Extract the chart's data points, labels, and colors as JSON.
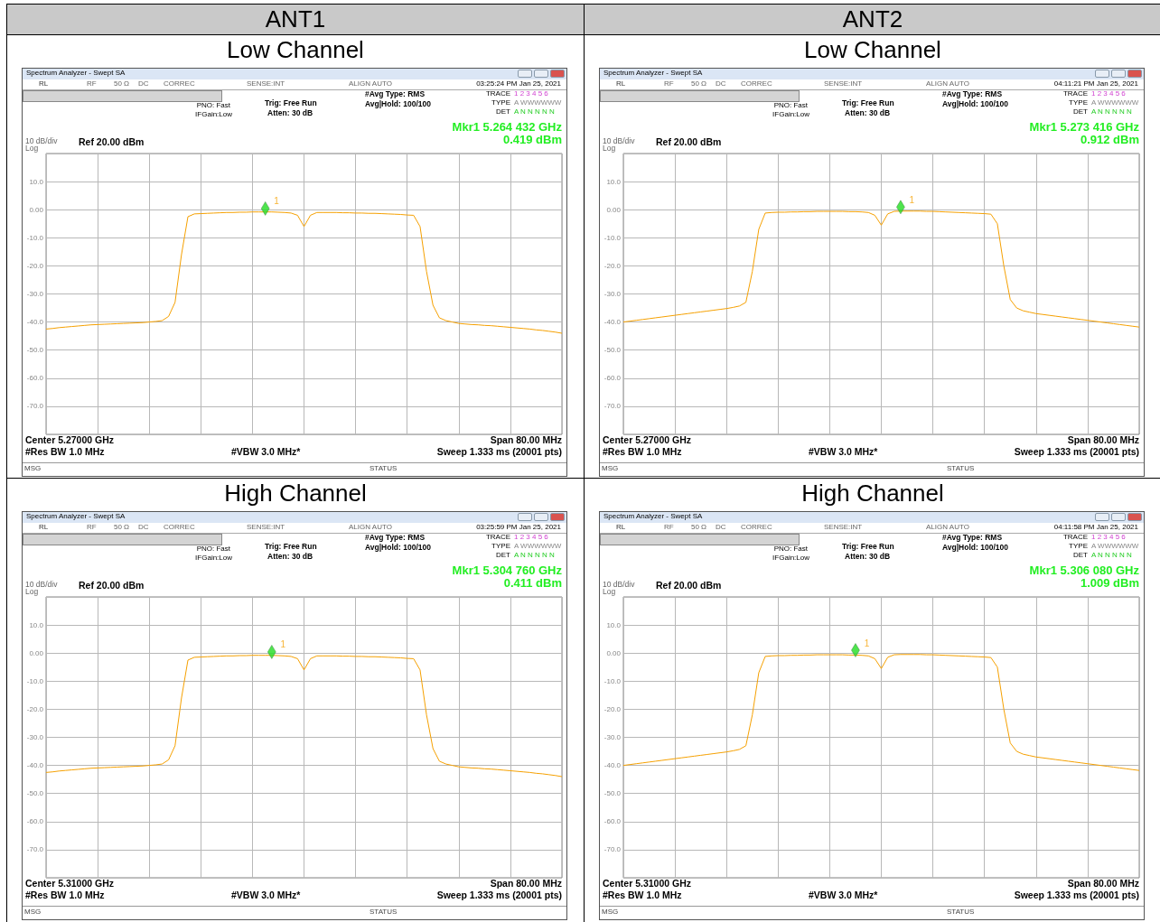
{
  "chart_data": [
    {
      "type": "line",
      "title": "ANT1",
      "subtitle": "Low Channel",
      "categories": [
        null,
        null,
        null,
        null,
        null,
        null,
        null,
        null,
        null,
        null,
        null,
        null,
        null,
        null,
        null,
        null,
        null,
        null,
        null,
        null,
        null,
        null,
        null,
        null,
        null,
        null,
        null,
        null,
        null,
        null,
        null,
        null,
        null,
        null,
        null,
        null,
        null,
        null,
        null,
        null,
        null,
        null,
        null,
        null,
        null,
        null,
        null,
        null,
        null,
        null,
        null,
        null,
        null,
        null,
        null,
        null,
        null,
        null,
        null,
        null,
        null,
        null,
        null,
        null,
        null,
        null,
        null,
        null,
        null,
        null,
        null,
        null,
        null,
        null,
        null,
        null,
        null,
        null,
        null,
        null,
        null
      ],
      "ylim": [
        -80,
        20
      ],
      "yticks": [
        {
          "value": 20,
          "label": null
        },
        {
          "value": 10,
          "label": "10.0"
        },
        {
          "value": 0,
          "label": "0.00"
        },
        {
          "value": -10,
          "label": "-10.0"
        },
        {
          "value": -20,
          "label": "-20.0"
        },
        {
          "value": -30,
          "label": "-30.0"
        },
        {
          "value": -40,
          "label": "-40.0"
        },
        {
          "value": -50,
          "label": "-50.0"
        },
        {
          "value": -60,
          "label": "-60.0"
        },
        {
          "value": -70,
          "label": "-70.0"
        },
        {
          "value": -80,
          "label": null
        }
      ],
      "grid": true,
      "tick_labels": "y",
      "series": [
        {
          "marker": "none",
          "color": "#f5a000",
          "values": [
            -42.5,
            -42.3,
            -42,
            -41.8,
            -41.6,
            -41.4,
            -41.2,
            -41,
            -40.9,
            -40.8,
            -40.7,
            -40.6,
            -40.5,
            -40.4,
            -40.3,
            -40.2,
            -40,
            -39.8,
            -39.5,
            -38,
            -33,
            -16,
            -2.5,
            -1.5,
            -1.4,
            -1.3,
            -1.2,
            -1.1,
            -1,
            -1,
            -0.9,
            -0.9,
            -0.8,
            -0.8,
            -0.8,
            -0.8,
            -0.9,
            -1,
            -1.2,
            -2,
            -6,
            -2,
            -1,
            -1,
            -1,
            -1,
            -1.1,
            -1.1,
            -1.2,
            -1.2,
            -1.3,
            -1.3,
            -1.4,
            -1.5,
            -1.6,
            -1.7,
            -1.9,
            -2,
            -6,
            -22,
            -34,
            -38.5,
            -39.5,
            -40,
            -40.5,
            -40.7,
            -40.9,
            -41,
            -41.2,
            -41.3,
            -41.5,
            -41.7,
            -41.9,
            -42.1,
            -42.3,
            -42.5,
            -42.8,
            -43,
            -43.3,
            -43.6,
            -44
          ]
        },
        {
          "type": "scatter",
          "name": "1",
          "marker": "diamond",
          "color": "#22dd22",
          "values": [
            null,
            null,
            null,
            null,
            null,
            null,
            null,
            null,
            null,
            null,
            null,
            null,
            null,
            null,
            null,
            null,
            null,
            null,
            null,
            null,
            null,
            null,
            null,
            null,
            null,
            null,
            null,
            null,
            null,
            null,
            null,
            null,
            null,
            null,
            0.419,
            null,
            null,
            null,
            null,
            null,
            null,
            null,
            null,
            null,
            null,
            null,
            null,
            null,
            null,
            null,
            null,
            null,
            null,
            null,
            null,
            null,
            null,
            null,
            null,
            null,
            null,
            null,
            null,
            null,
            null,
            null,
            null,
            null,
            null,
            null,
            null,
            null,
            null,
            null,
            null,
            null,
            null,
            null,
            null,
            null,
            null
          ]
        }
      ],
      "annotations": [
        "Spectrum Analyzer - Swept SA",
        "RL",
        "RF",
        "50 Ω",
        "DC",
        "CORREC",
        "SENSE:INT",
        "ALIGN AUTO",
        "03:25:24 PM Jan 25, 2021",
        "PNO: Fast",
        "IFGain:Low",
        "Trig: Free Run",
        "Atten: 30 dB",
        "#Avg Type: RMS",
        "Avg|Hold: 100/100",
        "TRACE",
        "1 2 3 4 5 6",
        "TYPE",
        "A WWWWWW",
        "DET",
        "A N N N N N",
        "Mkr1 5.264 432 GHz",
        "0.419 dBm",
        "10 dB/div",
        "Log",
        "Ref 20.00 dBm",
        "Center 5.27000 GHz",
        "Span 80.00 MHz",
        "#Res BW 1.0 MHz",
        "#VBW 3.0 MHz*",
        "Sweep  1.333 ms (20001 pts)",
        "MSG",
        "STATUS"
      ]
    },
    {
      "type": "line",
      "title": "ANT2",
      "subtitle": "Low Channel",
      "categories": [
        null,
        null,
        null,
        null,
        null,
        null,
        null,
        null,
        null,
        null,
        null,
        null,
        null,
        null,
        null,
        null,
        null,
        null,
        null,
        null,
        null,
        null,
        null,
        null,
        null,
        null,
        null,
        null,
        null,
        null,
        null,
        null,
        null,
        null,
        null,
        null,
        null,
        null,
        null,
        null,
        null,
        null,
        null,
        null,
        null,
        null,
        null,
        null,
        null,
        null,
        null,
        null,
        null,
        null,
        null,
        null,
        null,
        null,
        null,
        null,
        null,
        null,
        null,
        null,
        null,
        null,
        null,
        null,
        null,
        null,
        null,
        null,
        null,
        null,
        null,
        null,
        null,
        null,
        null,
        null,
        null
      ],
      "ylim": [
        -80,
        20
      ],
      "yticks": [
        {
          "value": 20,
          "label": null
        },
        {
          "value": 10,
          "label": "10.0"
        },
        {
          "value": 0,
          "label": "0.00"
        },
        {
          "value": -10,
          "label": "-10.0"
        },
        {
          "value": -20,
          "label": "-20.0"
        },
        {
          "value": -30,
          "label": "-30.0"
        },
        {
          "value": -40,
          "label": "-40.0"
        },
        {
          "value": -50,
          "label": "-50.0"
        },
        {
          "value": -60,
          "label": "-60.0"
        },
        {
          "value": -70,
          "label": "-70.0"
        },
        {
          "value": -80,
          "label": null
        }
      ],
      "grid": true,
      "tick_labels": "y",
      "series": [
        {
          "marker": "none",
          "color": "#f5a000",
          "values": [
            -40,
            -39.7,
            -39.4,
            -39.1,
            -38.8,
            -38.5,
            -38.2,
            -37.9,
            -37.6,
            -37.3,
            -37,
            -36.7,
            -36.4,
            -36.1,
            -35.8,
            -35.5,
            -35.2,
            -34.8,
            -34.3,
            -33,
            -22,
            -7,
            -1.2,
            -1,
            -0.9,
            -0.9,
            -0.8,
            -0.8,
            -0.7,
            -0.7,
            -0.6,
            -0.6,
            -0.6,
            -0.6,
            -0.6,
            -0.7,
            -0.7,
            -0.8,
            -1,
            -2,
            -5.5,
            -1.5,
            -0.6,
            -0.5,
            -0.5,
            -0.5,
            -0.5,
            -0.6,
            -0.6,
            -0.7,
            -0.8,
            -0.9,
            -1,
            -1.1,
            -1.2,
            -1.3,
            -1.4,
            -1.6,
            -5,
            -20,
            -32,
            -35,
            -36,
            -36.5,
            -37,
            -37.3,
            -37.6,
            -37.9,
            -38.2,
            -38.5,
            -38.8,
            -39.1,
            -39.4,
            -39.7,
            -40,
            -40.3,
            -40.6,
            -40.9,
            -41.2,
            -41.5,
            -41.8
          ]
        },
        {
          "type": "scatter",
          "name": "1",
          "marker": "diamond",
          "color": "#22dd22",
          "values": [
            null,
            null,
            null,
            null,
            null,
            null,
            null,
            null,
            null,
            null,
            null,
            null,
            null,
            null,
            null,
            null,
            null,
            null,
            null,
            null,
            null,
            null,
            null,
            null,
            null,
            null,
            null,
            null,
            null,
            null,
            null,
            null,
            null,
            null,
            null,
            null,
            null,
            null,
            null,
            null,
            null,
            null,
            null,
            0.912,
            null,
            null,
            null,
            null,
            null,
            null,
            null,
            null,
            null,
            null,
            null,
            null,
            null,
            null,
            null,
            null,
            null,
            null,
            null,
            null,
            null,
            null,
            null,
            null,
            null,
            null,
            null,
            null,
            null,
            null,
            null,
            null,
            null,
            null,
            null,
            null,
            null
          ]
        }
      ],
      "annotations": [
        "Spectrum Analyzer - Swept SA",
        "RL",
        "RF",
        "50 Ω",
        "DC",
        "CORREC",
        "SENSE:INT",
        "ALIGN AUTO",
        "04:11:21 PM Jan 25, 2021",
        "PNO: Fast",
        "IFGain:Low",
        "Trig: Free Run",
        "Atten: 30 dB",
        "#Avg Type: RMS",
        "Avg|Hold: 100/100",
        "TRACE",
        "1 2 3 4 5 6",
        "TYPE",
        "A WWWWWW",
        "DET",
        "A N N N N N",
        "Mkr1 5.273 416 GHz",
        "0.912 dBm",
        "10 dB/div",
        "Log",
        "Ref 20.00 dBm",
        "Center 5.27000 GHz",
        "Span 80.00 MHz",
        "#Res BW 1.0 MHz",
        "#VBW 3.0 MHz*",
        "Sweep  1.333 ms (20001 pts)",
        "MSG",
        "STATUS"
      ]
    },
    {
      "type": "line",
      "subtitle": "High Channel",
      "categories": [
        null,
        null,
        null,
        null,
        null,
        null,
        null,
        null,
        null,
        null,
        null,
        null,
        null,
        null,
        null,
        null,
        null,
        null,
        null,
        null,
        null,
        null,
        null,
        null,
        null,
        null,
        null,
        null,
        null,
        null,
        null,
        null,
        null,
        null,
        null,
        null,
        null,
        null,
        null,
        null,
        null,
        null,
        null,
        null,
        null,
        null,
        null,
        null,
        null,
        null,
        null,
        null,
        null,
        null,
        null,
        null,
        null,
        null,
        null,
        null,
        null,
        null,
        null,
        null,
        null,
        null,
        null,
        null,
        null,
        null,
        null,
        null,
        null,
        null,
        null,
        null,
        null,
        null,
        null,
        null,
        null
      ],
      "ylim": [
        -80,
        20
      ],
      "yticks": [
        {
          "value": 20,
          "label": null
        },
        {
          "value": 10,
          "label": "10.0"
        },
        {
          "value": 0,
          "label": "0.00"
        },
        {
          "value": -10,
          "label": "-10.0"
        },
        {
          "value": -20,
          "label": "-20.0"
        },
        {
          "value": -30,
          "label": "-30.0"
        },
        {
          "value": -40,
          "label": "-40.0"
        },
        {
          "value": -50,
          "label": "-50.0"
        },
        {
          "value": -60,
          "label": "-60.0"
        },
        {
          "value": -70,
          "label": "-70.0"
        },
        {
          "value": -80,
          "label": null
        }
      ],
      "grid": true,
      "tick_labels": "y",
      "series": [
        {
          "marker": "none",
          "color": "#f5a000",
          "values": [
            -42.5,
            -42.3,
            -42,
            -41.8,
            -41.6,
            -41.4,
            -41.2,
            -41,
            -40.9,
            -40.8,
            -40.7,
            -40.6,
            -40.5,
            -40.4,
            -40.3,
            -40.2,
            -40,
            -39.8,
            -39.5,
            -38,
            -33,
            -16,
            -2.5,
            -1.5,
            -1.4,
            -1.3,
            -1.2,
            -1.1,
            -1,
            -1,
            -0.9,
            -0.9,
            -0.8,
            -0.8,
            -0.8,
            -0.8,
            -0.9,
            -1,
            -1.2,
            -2,
            -6,
            -2,
            -1,
            -1,
            -1,
            -1,
            -1.1,
            -1.1,
            -1.2,
            -1.2,
            -1.3,
            -1.3,
            -1.4,
            -1.5,
            -1.6,
            -1.7,
            -1.9,
            -2,
            -6,
            -22,
            -34,
            -38.5,
            -39.5,
            -40,
            -40.5,
            -40.7,
            -40.9,
            -41,
            -41.2,
            -41.3,
            -41.5,
            -41.7,
            -41.9,
            -42.1,
            -42.3,
            -42.5,
            -42.8,
            -43,
            -43.3,
            -43.6,
            -44
          ]
        },
        {
          "type": "scatter",
          "name": "1",
          "marker": "diamond",
          "color": "#22dd22",
          "values": [
            null,
            null,
            null,
            null,
            null,
            null,
            null,
            null,
            null,
            null,
            null,
            null,
            null,
            null,
            null,
            null,
            null,
            null,
            null,
            null,
            null,
            null,
            null,
            null,
            null,
            null,
            null,
            null,
            null,
            null,
            null,
            null,
            null,
            null,
            null,
            0.411,
            null,
            null,
            null,
            null,
            null,
            null,
            null,
            null,
            null,
            null,
            null,
            null,
            null,
            null,
            null,
            null,
            null,
            null,
            null,
            null,
            null,
            null,
            null,
            null,
            null,
            null,
            null,
            null,
            null,
            null,
            null,
            null,
            null,
            null,
            null,
            null,
            null,
            null,
            null,
            null,
            null,
            null,
            null,
            null,
            null
          ]
        }
      ],
      "annotations": [
        "Spectrum Analyzer - Swept SA",
        "RL",
        "RF",
        "50 Ω",
        "DC",
        "CORREC",
        "SENSE:INT",
        "ALIGN AUTO",
        "03:25:59 PM Jan 25, 2021",
        "PNO: Fast",
        "IFGain:Low",
        "Trig: Free Run",
        "Atten: 30 dB",
        "#Avg Type: RMS",
        "Avg|Hold: 100/100",
        "TRACE",
        "1 2 3 4 5 6",
        "TYPE",
        "A WWWWWW",
        "DET",
        "A N N N N N",
        "Mkr1 5.304 760 GHz",
        "0.411 dBm",
        "10 dB/div",
        "Log",
        "Ref 20.00 dBm",
        "Center 5.31000 GHz",
        "Span 80.00 MHz",
        "#Res BW 1.0 MHz",
        "#VBW 3.0 MHz*",
        "Sweep  1.333 ms (20001 pts)",
        "MSG",
        "STATUS"
      ]
    },
    {
      "type": "line",
      "subtitle": "High Channel",
      "categories": [
        null,
        null,
        null,
        null,
        null,
        null,
        null,
        null,
        null,
        null,
        null,
        null,
        null,
        null,
        null,
        null,
        null,
        null,
        null,
        null,
        null,
        null,
        null,
        null,
        null,
        null,
        null,
        null,
        null,
        null,
        null,
        null,
        null,
        null,
        null,
        null,
        null,
        null,
        null,
        null,
        null,
        null,
        null,
        null,
        null,
        null,
        null,
        null,
        null,
        null,
        null,
        null,
        null,
        null,
        null,
        null,
        null,
        null,
        null,
        null,
        null,
        null,
        null,
        null,
        null,
        null,
        null,
        null,
        null,
        null,
        null,
        null,
        null,
        null,
        null,
        null,
        null,
        null,
        null,
        null,
        null
      ],
      "ylim": [
        -80,
        20
      ],
      "yticks": [
        {
          "value": 20,
          "label": null
        },
        {
          "value": 10,
          "label": "10.0"
        },
        {
          "value": 0,
          "label": "0.00"
        },
        {
          "value": -10,
          "label": "-10.0"
        },
        {
          "value": -20,
          "label": "-20.0"
        },
        {
          "value": -30,
          "label": "-30.0"
        },
        {
          "value": -40,
          "label": "-40.0"
        },
        {
          "value": -50,
          "label": "-50.0"
        },
        {
          "value": -60,
          "label": "-60.0"
        },
        {
          "value": -70,
          "label": "-70.0"
        },
        {
          "value": -80,
          "label": null
        }
      ],
      "grid": true,
      "tick_labels": "y",
      "series": [
        {
          "marker": "none",
          "color": "#f5a000",
          "values": [
            -40,
            -39.7,
            -39.4,
            -39.1,
            -38.8,
            -38.5,
            -38.2,
            -37.9,
            -37.6,
            -37.3,
            -37,
            -36.7,
            -36.4,
            -36.1,
            -35.8,
            -35.5,
            -35.2,
            -34.8,
            -34.3,
            -33,
            -22,
            -7,
            -1.2,
            -1,
            -0.9,
            -0.9,
            -0.8,
            -0.8,
            -0.7,
            -0.7,
            -0.6,
            -0.6,
            -0.6,
            -0.6,
            -0.6,
            -0.7,
            -0.7,
            -0.8,
            -1,
            -2,
            -5.5,
            -1.5,
            -0.6,
            -0.5,
            -0.5,
            -0.5,
            -0.5,
            -0.6,
            -0.6,
            -0.7,
            -0.8,
            -0.9,
            -1,
            -1.1,
            -1.2,
            -1.3,
            -1.4,
            -1.6,
            -5,
            -20,
            -32,
            -35,
            -36,
            -36.5,
            -37,
            -37.3,
            -37.6,
            -37.9,
            -38.2,
            -38.5,
            -38.8,
            -39.1,
            -39.4,
            -39.7,
            -40,
            -40.3,
            -40.6,
            -40.9,
            -41.2,
            -41.5,
            -41.8
          ]
        },
        {
          "type": "scatter",
          "name": "1",
          "marker": "diamond",
          "color": "#22dd22",
          "values": [
            null,
            null,
            null,
            null,
            null,
            null,
            null,
            null,
            null,
            null,
            null,
            null,
            null,
            null,
            null,
            null,
            null,
            null,
            null,
            null,
            null,
            null,
            null,
            null,
            null,
            null,
            null,
            null,
            null,
            null,
            null,
            null,
            null,
            null,
            null,
            null,
            1.009,
            null,
            null,
            null,
            null,
            null,
            null,
            null,
            null,
            null,
            null,
            null,
            null,
            null,
            null,
            null,
            null,
            null,
            null,
            null,
            null,
            null,
            null,
            null,
            null,
            null,
            null,
            null,
            null,
            null,
            null,
            null,
            null,
            null,
            null,
            null,
            null,
            null,
            null,
            null,
            null,
            null,
            null,
            null,
            null
          ]
        }
      ],
      "annotations": [
        "Spectrum Analyzer - Swept SA",
        "RL",
        "RF",
        "50 Ω",
        "DC",
        "CORREC",
        "SENSE:INT",
        "ALIGN AUTO",
        "04:11:58 PM Jan 25, 2021",
        "PNO: Fast",
        "IFGain:Low",
        "Trig: Free Run",
        "Atten: 30 dB",
        "#Avg Type: RMS",
        "Avg|Hold: 100/100",
        "TRACE",
        "1 2 3 4 5 6",
        "TYPE",
        "A WWWWWW",
        "DET",
        "A N N N N N",
        "Mkr1 5.306 080 GHz",
        "1.009 dBm",
        "10 dB/div",
        "Log",
        "Ref 20.00 dBm",
        "Center 5.31000 GHz",
        "Span 80.00 MHz",
        "#Res BW 1.0 MHz",
        "#VBW 3.0 MHz*",
        "Sweep  1.333 ms (20001 pts)",
        "MSG",
        "STATUS"
      ]
    }
  ]
}
